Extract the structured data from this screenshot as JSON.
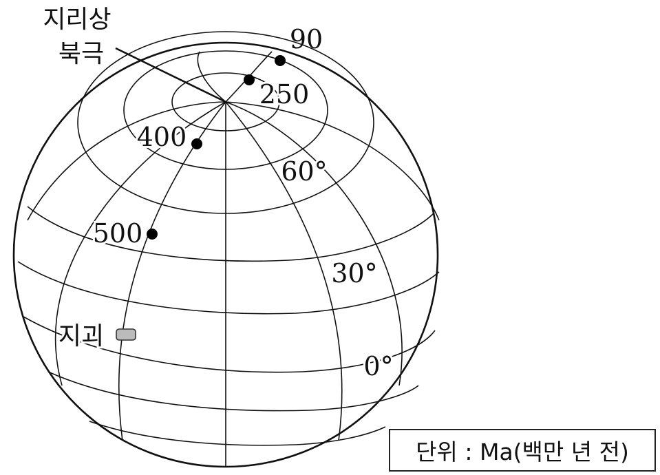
{
  "labels": {
    "pole_line1": "지리상",
    "pole_line2": "북극",
    "fossil": "지괴",
    "unit": "단위 : Ma(백만 년 전)"
  },
  "ages_ma": [
    "90",
    "250",
    "400",
    "500"
  ],
  "latitudes": [
    "60°",
    "30°",
    "0°"
  ],
  "colors": {
    "line": "#111111",
    "fossil_fill": "#bbbbbb"
  }
}
